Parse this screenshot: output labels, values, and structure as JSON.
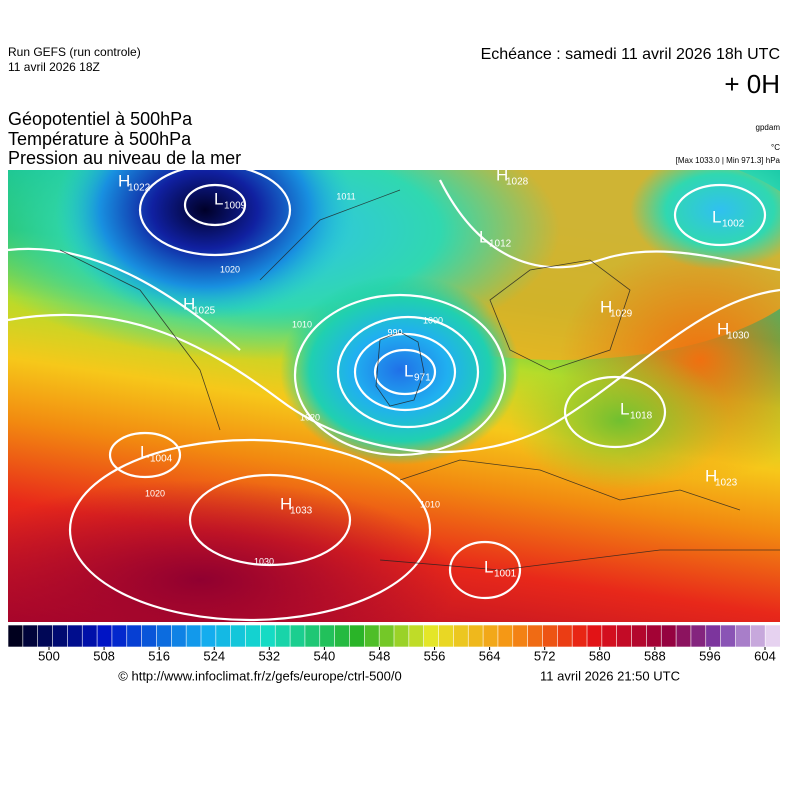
{
  "header": {
    "run": "Run GEFS (run controle)",
    "run_date": "11 avril 2026 18Z",
    "echeance": "Echéance : samedi 11 avril 2026 18h UTC",
    "offset": "+ 0H",
    "titles": [
      "Géopotentiel à 500hPa",
      "Température à 500hPa",
      "Pression au niveau de la mer"
    ],
    "units": [
      "gpdam",
      "°C",
      "[Max 1033.0 | Min 971.3] hPa"
    ]
  },
  "map": {
    "centers": [
      {
        "kind": "H",
        "value": "1022"
      },
      {
        "kind": "L",
        "value": "1009"
      },
      {
        "kind": "H",
        "value": "1028"
      },
      {
        "kind": "L",
        "value": "1012"
      },
      {
        "kind": "L",
        "value": "1002"
      },
      {
        "kind": "H",
        "value": "1025"
      },
      {
        "kind": "H",
        "value": "1029"
      },
      {
        "kind": "H",
        "value": "1030"
      },
      {
        "kind": "L",
        "value": "971"
      },
      {
        "kind": "L",
        "value": "1018"
      },
      {
        "kind": "L",
        "value": "1004"
      },
      {
        "kind": "H",
        "value": "1033"
      },
      {
        "kind": "L",
        "value": "1001"
      },
      {
        "kind": "H",
        "value": "1023"
      }
    ],
    "isobar_labels": [
      "1011",
      "990",
      "1000",
      "1010",
      "1020",
      "1020",
      "1030",
      "1010",
      "1020"
    ]
  },
  "colorbar": {
    "ticks": [
      500,
      508,
      516,
      524,
      532,
      540,
      548,
      556,
      564,
      572,
      580,
      588,
      596,
      604
    ]
  },
  "footer": {
    "url": "© http://www.infoclimat.fr/z/gefs/europe/ctrl-500/0",
    "timestamp": "11 avril 2026 21:50 UTC"
  }
}
